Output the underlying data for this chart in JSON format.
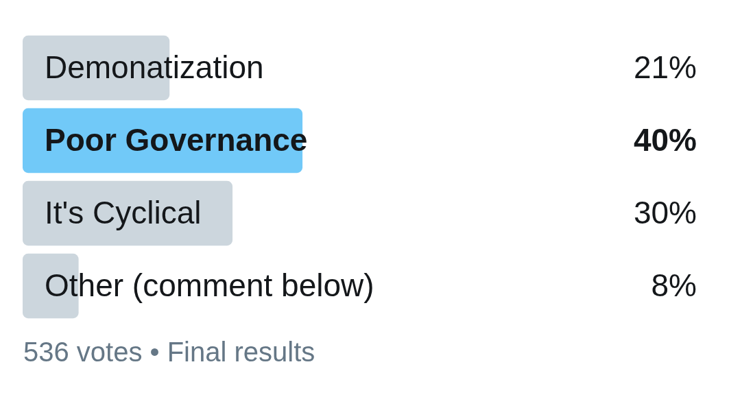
{
  "chart_data": {
    "type": "bar",
    "orientation": "horizontal",
    "categories": [
      "Demonatization",
      "Poor Governance",
      "It's Cyclical",
      "Other (comment below)"
    ],
    "values": [
      21,
      40,
      30,
      8
    ],
    "colors": [
      "#ccd6dd",
      "#71c9f8",
      "#ccd6dd",
      "#ccd6dd"
    ],
    "value_labels": [
      "21%",
      "40%",
      "30%",
      "8%"
    ],
    "tick_labels": "y",
    "legend": false,
    "annotations": [
      "536 votes • Final results"
    ]
  }
}
